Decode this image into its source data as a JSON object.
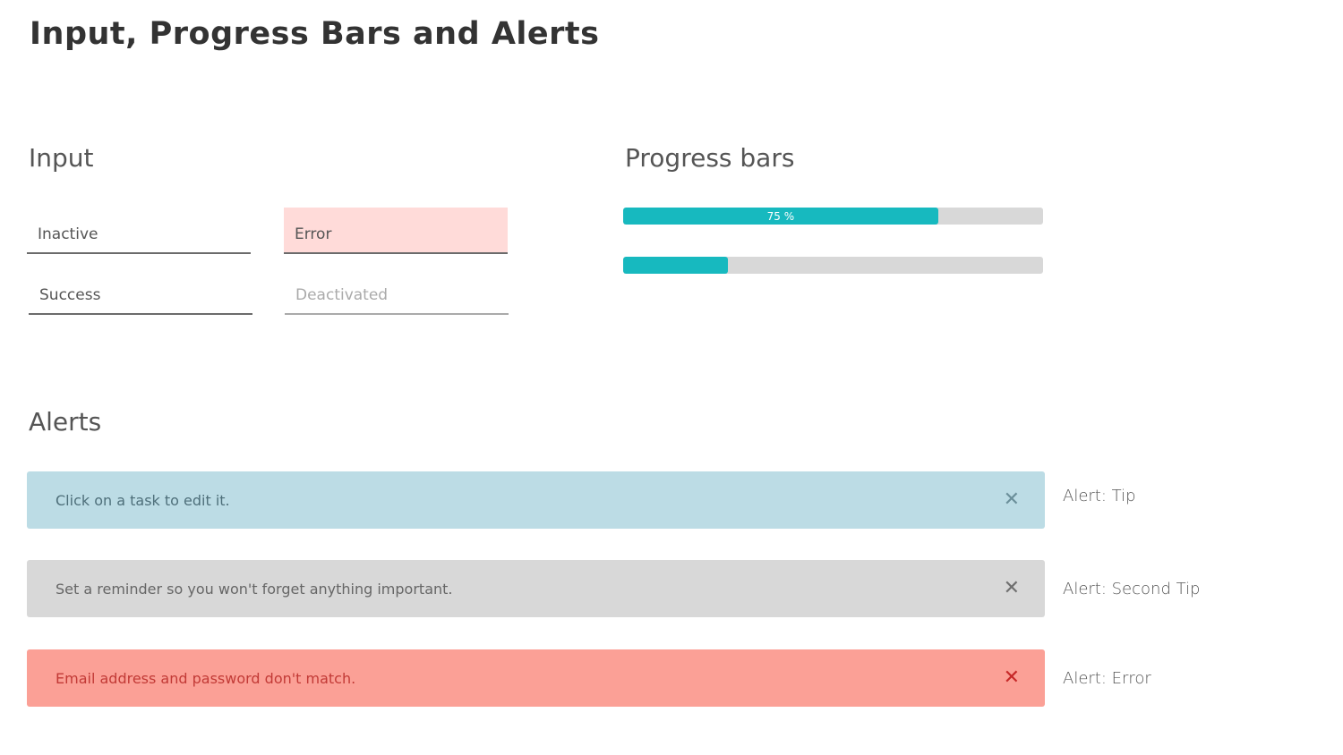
{
  "page": {
    "title": "Input, Progress Bars and Alerts"
  },
  "input": {
    "heading": "Input",
    "fields": [
      {
        "label": "Inactive",
        "state": "inactive"
      },
      {
        "label": "Error",
        "state": "error"
      },
      {
        "label": "Success",
        "state": "success"
      },
      {
        "label": "Deactivated",
        "state": "deactivated"
      }
    ]
  },
  "progress": {
    "heading": "Progress bars",
    "bars": [
      {
        "value": 0.75,
        "label": "75 %"
      },
      {
        "value": 0.25,
        "label": ""
      }
    ],
    "fill_color": "#17b9bf",
    "track_color": "#d8d8d8"
  },
  "alerts": {
    "heading": "Alerts",
    "items": [
      {
        "message": "Click on a task to edit it.",
        "caption": "Alert: Tip",
        "close_icon": "close-icon",
        "color": "#bcdce5"
      },
      {
        "message": "Set a reminder so you won't forget anything important.",
        "caption": "Alert: Second Tip",
        "close_icon": "close-icon",
        "color": "#d8d8d8"
      },
      {
        "message": "Email address and password don't match.",
        "caption": "Alert: Error",
        "close_icon": "close-icon",
        "color": "#fba096"
      }
    ],
    "close_glyph": "✕"
  }
}
